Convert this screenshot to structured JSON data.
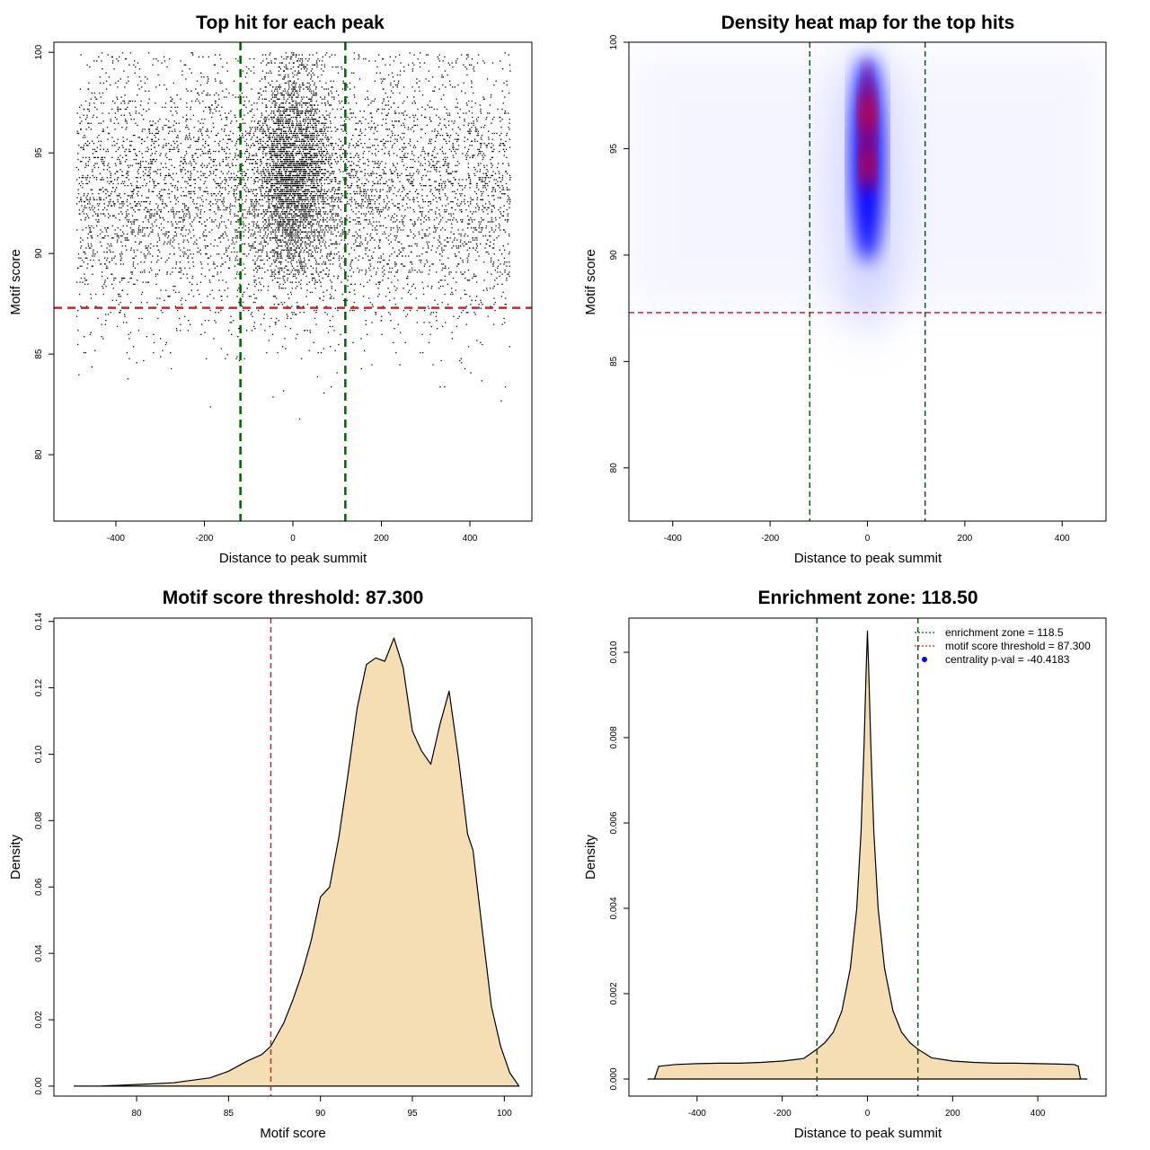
{
  "colors": {
    "threshold": "#e41a1c",
    "zone": "#006400",
    "fill": "#f5deb3",
    "dots": "#000000",
    "heat_low": "#ffffff",
    "heat_mid": "#0000ff",
    "heat_high": "#ff0000",
    "legend_dot": "#0000ff"
  },
  "chart_data": [
    {
      "type": "scatter",
      "title": "Top hit for each peak",
      "xlabel": "Distance to peak summit",
      "ylabel": "Motif score",
      "xlim": [
        -540,
        540
      ],
      "ylim": [
        76.7,
        100.5
      ],
      "xticks": [
        -400,
        -200,
        0,
        200,
        400
      ],
      "yticks": [
        80,
        85,
        90,
        95,
        100
      ],
      "xtick_labels": [
        "-400",
        "-200",
        "0",
        "200",
        "400"
      ],
      "ytick_labels": [
        "80",
        "85",
        "90",
        "95",
        "100"
      ],
      "threshold": 87.3,
      "enrichment_zone": 118.5,
      "distribution": {
        "x_range": [
          -490,
          490
        ],
        "central_sd": 45,
        "background_score_mean": 93.0,
        "background_score_sd": 3.2,
        "central_score_mean": 94.0,
        "central_score_sd": 2.7,
        "n_points": 9000
      }
    },
    {
      "type": "heatmap",
      "title": "Density heat map for the top hits",
      "xlabel": "Distance to peak summit",
      "ylabel": "Motif score",
      "xlim": [
        -490,
        490
      ],
      "ylim": [
        77.5,
        100
      ],
      "xticks": [
        -400,
        -200,
        0,
        200,
        400
      ],
      "yticks": [
        80,
        85,
        90,
        95,
        100
      ],
      "xtick_labels": [
        "-400",
        "-200",
        "0",
        "200",
        "400"
      ],
      "ytick_labels": [
        "80",
        "85",
        "90",
        "95",
        "100"
      ],
      "threshold": 87.3,
      "enrichment_zone": 118.5,
      "hotspots": [
        {
          "x": 0,
          "y": 96.6,
          "intensity": 1.0
        },
        {
          "x": 0,
          "y": 94.3,
          "intensity": 0.95
        },
        {
          "x": 0,
          "y": 98.2,
          "intensity": 0.55
        }
      ]
    },
    {
      "type": "area",
      "title": "Motif score threshold: 87.300",
      "xlabel": "Motif score",
      "ylabel": "Density",
      "xlim": [
        75.5,
        101.5
      ],
      "ylim": [
        -0.003,
        0.141
      ],
      "xticks": [
        80,
        85,
        90,
        95,
        100
      ],
      "yticks": [
        0.0,
        0.02,
        0.04,
        0.06,
        0.08,
        0.1,
        0.12,
        0.14
      ],
      "xtick_labels": [
        "80",
        "85",
        "90",
        "95",
        "100"
      ],
      "ytick_labels": [
        "0.00",
        "0.02",
        "0.04",
        "0.06",
        "0.08",
        "0.10",
        "0.12",
        "0.14"
      ],
      "threshold": 87.3,
      "x": [
        76.6,
        78,
        80,
        82,
        84,
        85,
        86,
        86.8,
        87.3,
        88,
        88.5,
        89,
        89.5,
        90,
        90.5,
        91,
        91.5,
        92,
        92.5,
        93,
        93.5,
        94,
        94.5,
        95,
        95.5,
        96,
        96.5,
        97,
        97.5,
        98,
        98.3,
        98.8,
        99.3,
        99.8,
        100.3,
        100.8
      ],
      "y": [
        0.0,
        0.0,
        0.0005,
        0.001,
        0.0025,
        0.0045,
        0.0075,
        0.0095,
        0.012,
        0.019,
        0.026,
        0.034,
        0.044,
        0.057,
        0.06,
        0.075,
        0.094,
        0.114,
        0.127,
        0.129,
        0.128,
        0.135,
        0.126,
        0.107,
        0.101,
        0.097,
        0.109,
        0.119,
        0.099,
        0.076,
        0.071,
        0.047,
        0.024,
        0.012,
        0.004,
        0.0
      ]
    },
    {
      "type": "area",
      "title": "Enrichment zone: 118.50",
      "xlabel": "Distance to peak summit",
      "ylabel": "Density",
      "xlim": [
        -560,
        560
      ],
      "ylim": [
        -0.0004,
        0.0108
      ],
      "xticks": [
        -400,
        -200,
        0,
        200,
        400
      ],
      "yticks": [
        0.0,
        0.002,
        0.004,
        0.006,
        0.008,
        0.01
      ],
      "xtick_labels": [
        "-400",
        "-200",
        "0",
        "200",
        "400"
      ],
      "ytick_labels": [
        "0.000",
        "0.002",
        "0.004",
        "0.006",
        "0.008",
        "0.010"
      ],
      "enrichment_zone": 118.5,
      "x": [
        -515,
        -500,
        -490,
        -450,
        -400,
        -350,
        -300,
        -250,
        -200,
        -150,
        -118.5,
        -100,
        -80,
        -60,
        -40,
        -25,
        -15,
        -8,
        -3,
        0,
        3,
        8,
        15,
        25,
        40,
        60,
        80,
        100,
        118.5,
        150,
        200,
        250,
        300,
        350,
        400,
        450,
        485,
        495,
        500,
        515
      ],
      "y": [
        0.0,
        0.0,
        0.0003,
        0.00034,
        0.00036,
        0.00037,
        0.00037,
        0.00039,
        0.00042,
        0.00048,
        0.0007,
        0.00085,
        0.0011,
        0.0016,
        0.0026,
        0.004,
        0.0058,
        0.0078,
        0.0096,
        0.0105,
        0.0096,
        0.0078,
        0.0058,
        0.004,
        0.0026,
        0.0016,
        0.0011,
        0.00085,
        0.0007,
        0.0005,
        0.00042,
        0.00039,
        0.00037,
        0.00037,
        0.00036,
        0.00035,
        0.00034,
        0.0003,
        0.0,
        0.0
      ],
      "legend": {
        "position": "top-right",
        "entries": [
          {
            "label": "enrichment zone = 118.5",
            "kind": "line",
            "color": "#006400"
          },
          {
            "label": "motif score threshold = 87.300",
            "kind": "line",
            "color": "#e41a1c"
          },
          {
            "label": "centrality p-val = -40.4183",
            "kind": "dot",
            "color": "#0000ff"
          }
        ]
      }
    }
  ]
}
